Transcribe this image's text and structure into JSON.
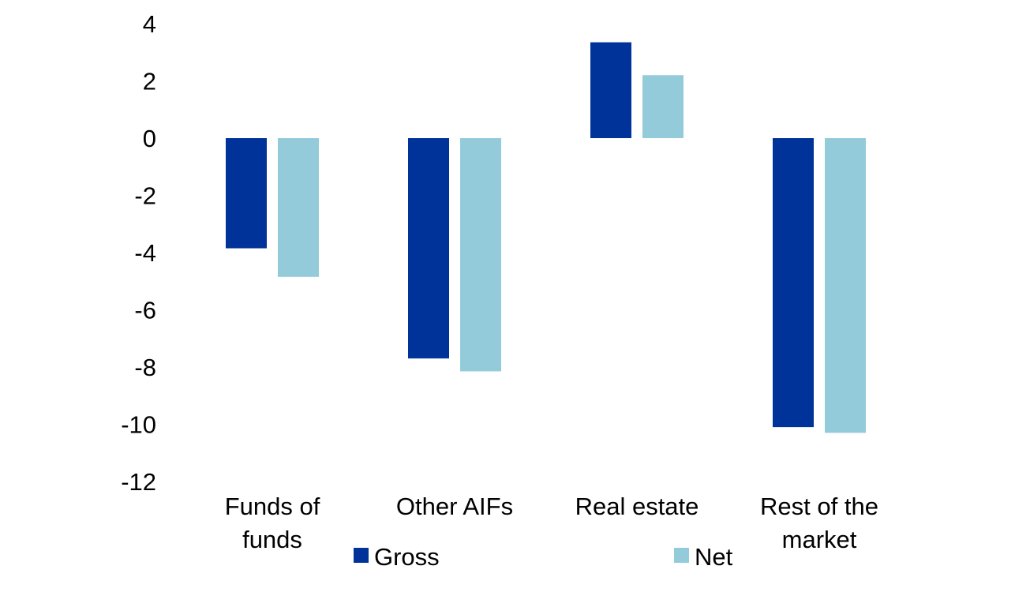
{
  "chart_data": {
    "type": "bar",
    "title": "",
    "xlabel": "",
    "ylabel": "",
    "ylim": [
      -12,
      4
    ],
    "yticks": [
      4,
      2,
      0,
      -2,
      -4,
      -6,
      -8,
      -10,
      -12
    ],
    "grid": false,
    "legend_position": "bottom",
    "categories": [
      [
        "Funds of",
        "funds"
      ],
      [
        "Other AIFs"
      ],
      [
        "Real estate"
      ],
      [
        "Rest of the",
        "market"
      ]
    ],
    "series": [
      {
        "name": "Gross",
        "color": "#003399",
        "values": [
          -3.85,
          -7.7,
          3.35,
          -10.1
        ]
      },
      {
        "name": "Net",
        "color": "#94cbdb",
        "values": [
          -4.85,
          -8.15,
          2.2,
          -10.3
        ]
      }
    ]
  }
}
